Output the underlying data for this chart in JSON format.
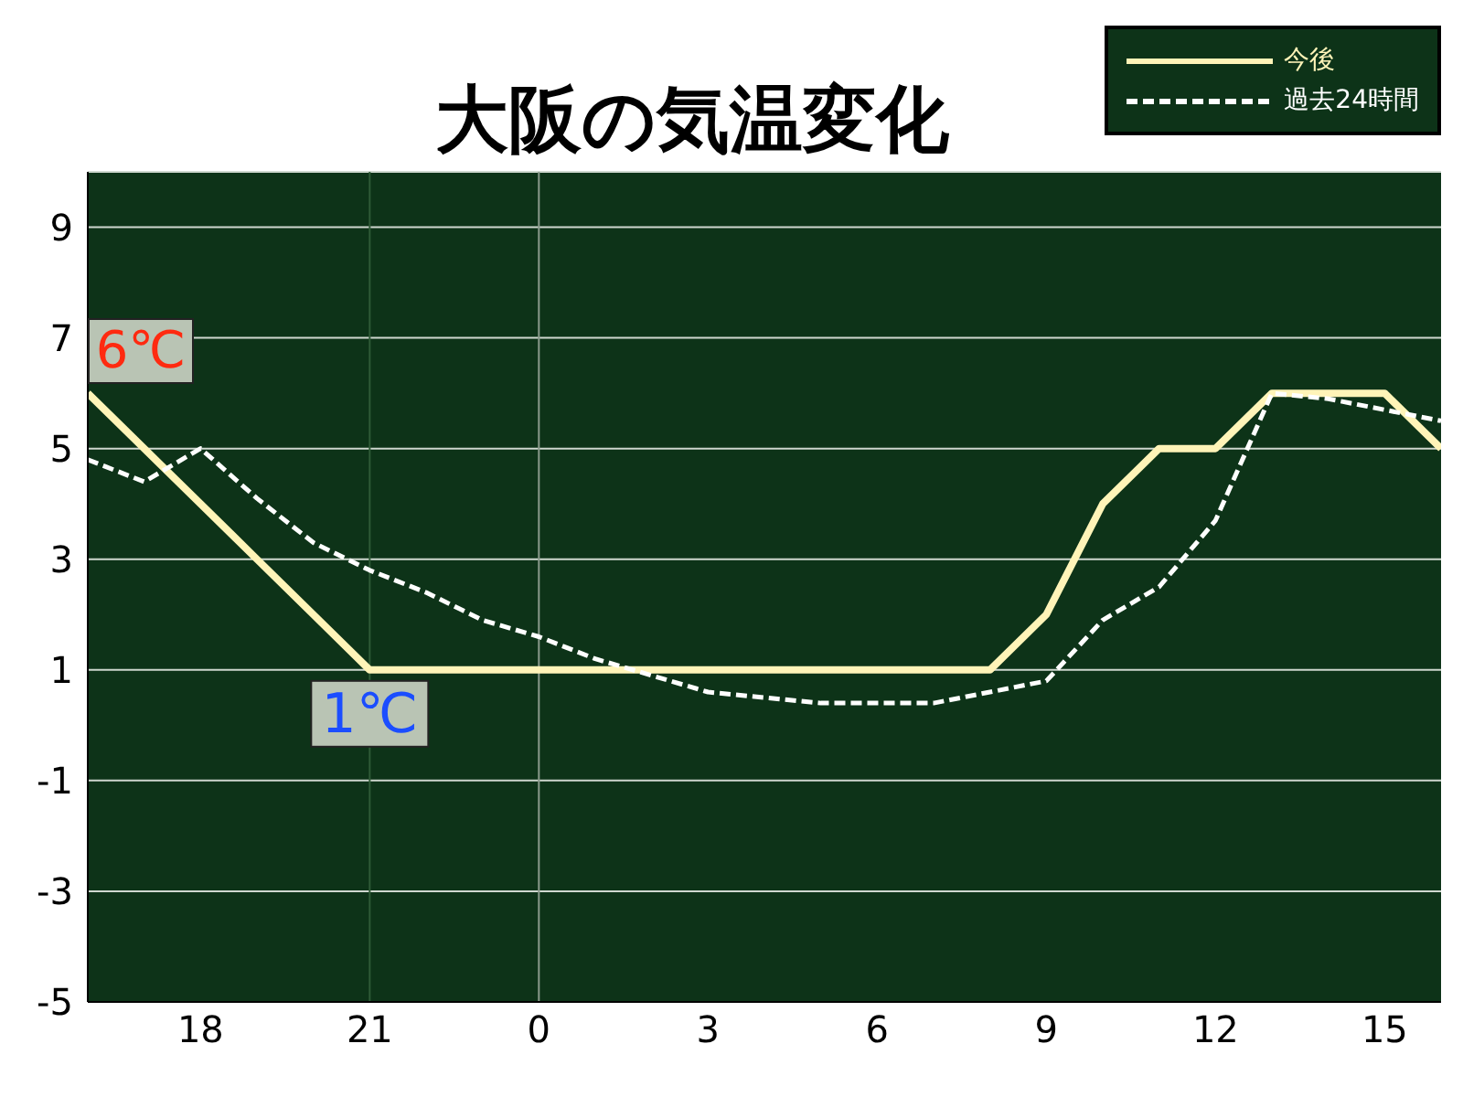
{
  "chart_data": {
    "type": "line",
    "title": "大阪の気温変化",
    "categories": [
      null,
      null,
      "18",
      null,
      null,
      "21",
      null,
      null,
      "0",
      null,
      null,
      "3",
      null,
      null,
      "6",
      null,
      null,
      "9",
      null,
      null,
      "12",
      null,
      null,
      "15",
      null
    ],
    "series": [
      {
        "name": "今後",
        "color": "#fff4b8",
        "line_style": "solid",
        "values": [
          6,
          5,
          4,
          3,
          2,
          1,
          1,
          1,
          1,
          1,
          1,
          1,
          1,
          1,
          1,
          1,
          1,
          2,
          4,
          5,
          5,
          6,
          6,
          6,
          5
        ]
      },
      {
        "name": "過去24時間",
        "color": "#ffffff",
        "line_style": "dashed",
        "values": [
          4.8,
          4.4,
          5,
          4.1,
          3.3,
          2.8,
          2.4,
          1.9,
          1.6,
          1.2,
          0.9,
          0.6,
          0.5,
          0.4,
          0.4,
          0.4,
          0.6,
          0.8,
          1.9,
          2.5,
          3.7,
          6,
          5.9,
          5.7,
          5.5
        ]
      }
    ],
    "ylim": [
      -5,
      10
    ],
    "yticks": [
      -5,
      -3,
      -1,
      1,
      3,
      5,
      7,
      9
    ],
    "grid": "y",
    "legend": "top right",
    "ref_lines": [
      {
        "axis": "x",
        "value": "21",
        "color": "#2f5a36"
      },
      {
        "axis": "x",
        "value": "0",
        "color": "#8a9a8c"
      }
    ],
    "annotations": [
      "6℃",
      {
        "text": "1℃",
        "x": "21",
        "y": 1
      }
    ]
  }
}
